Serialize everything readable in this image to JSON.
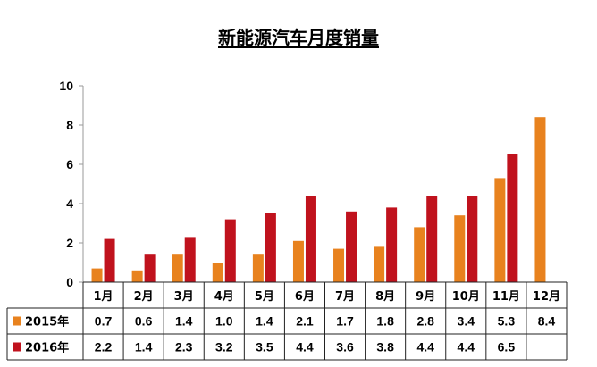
{
  "title": "新能源汽车月度销量",
  "chart_data": {
    "type": "bar",
    "title": "新能源汽车月度销量",
    "categories": [
      "1月",
      "2月",
      "3月",
      "4月",
      "5月",
      "6月",
      "7月",
      "8月",
      "9月",
      "10月",
      "11月",
      "12月"
    ],
    "series": [
      {
        "name": "2015年",
        "color": "#e8821e",
        "values": [
          0.7,
          0.6,
          1.4,
          1.0,
          1.4,
          2.1,
          1.7,
          1.8,
          2.8,
          3.4,
          5.3,
          8.4
        ],
        "labels": [
          "0.7",
          "0.6",
          "1.4",
          "1.0",
          "1.4",
          "2.1",
          "1.7",
          "1.8",
          "2.8",
          "3.4",
          "5.3",
          "8.4"
        ]
      },
      {
        "name": "2016年",
        "color": "#c0121d",
        "values": [
          2.2,
          1.4,
          2.3,
          3.2,
          3.5,
          4.4,
          3.6,
          3.8,
          4.4,
          4.4,
          6.5,
          null
        ],
        "labels": [
          "2.2",
          "1.4",
          "2.3",
          "3.2",
          "3.5",
          "4.4",
          "3.6",
          "3.8",
          "4.4",
          "4.4",
          "6.5",
          ""
        ]
      }
    ],
    "yticks": [
      "0",
      "2",
      "4",
      "6",
      "8",
      "10"
    ],
    "ylim": [
      0,
      10
    ],
    "xlabel": "",
    "ylabel": "",
    "grid": false,
    "legend": "data-table",
    "axis_color": "#9a9a9a"
  }
}
